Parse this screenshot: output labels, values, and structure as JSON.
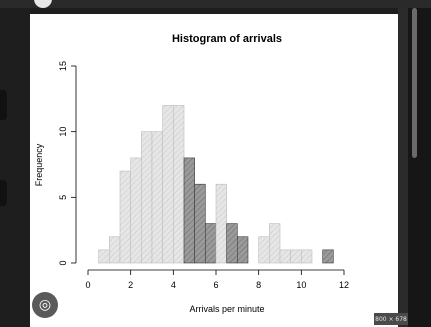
{
  "chart_data": {
    "type": "bar",
    "title": "Histogram of arrivals",
    "xlabel": "Arrivals per minute",
    "ylabel": "Frequency",
    "xlim": [
      0,
      12
    ],
    "ylim": [
      0,
      15
    ],
    "x_ticks": [
      "0",
      "2",
      "4",
      "6",
      "8",
      "10",
      "12"
    ],
    "y_ticks": [
      "0",
      "5",
      "10",
      "15"
    ],
    "bin_width": 0.5,
    "bins": [
      {
        "start": 0.5,
        "value": 1,
        "fill": "light"
      },
      {
        "start": 1.0,
        "value": 2,
        "fill": "light"
      },
      {
        "start": 1.5,
        "value": 7,
        "fill": "light"
      },
      {
        "start": 2.0,
        "value": 8,
        "fill": "light"
      },
      {
        "start": 2.5,
        "value": 10,
        "fill": "light"
      },
      {
        "start": 3.0,
        "value": 10,
        "fill": "light"
      },
      {
        "start": 3.5,
        "value": 12,
        "fill": "light"
      },
      {
        "start": 4.0,
        "value": 12,
        "fill": "light"
      },
      {
        "start": 4.5,
        "value": 8,
        "fill": "dark"
      },
      {
        "start": 5.0,
        "value": 6,
        "fill": "dark"
      },
      {
        "start": 5.5,
        "value": 3,
        "fill": "dark"
      },
      {
        "start": 6.0,
        "value": 6,
        "fill": "light"
      },
      {
        "start": 6.5,
        "value": 3,
        "fill": "dark"
      },
      {
        "start": 7.0,
        "value": 2,
        "fill": "dark"
      },
      {
        "start": 7.5,
        "value": 0,
        "fill": "light"
      },
      {
        "start": 8.0,
        "value": 2,
        "fill": "light"
      },
      {
        "start": 8.5,
        "value": 3,
        "fill": "light"
      },
      {
        "start": 9.0,
        "value": 1,
        "fill": "light"
      },
      {
        "start": 9.5,
        "value": 1,
        "fill": "light"
      },
      {
        "start": 10.0,
        "value": 1,
        "fill": "light"
      },
      {
        "start": 10.5,
        "value": 0,
        "fill": "light"
      },
      {
        "start": 11.0,
        "value": 1,
        "fill": "dark"
      }
    ],
    "colors": {
      "light": "#e6e6e6",
      "dark": "#9a9a9a",
      "hatch": "#7a7a7a"
    }
  },
  "overlay": {
    "lens_icon": "lens-icon",
    "size_badge": "800 × 678"
  }
}
